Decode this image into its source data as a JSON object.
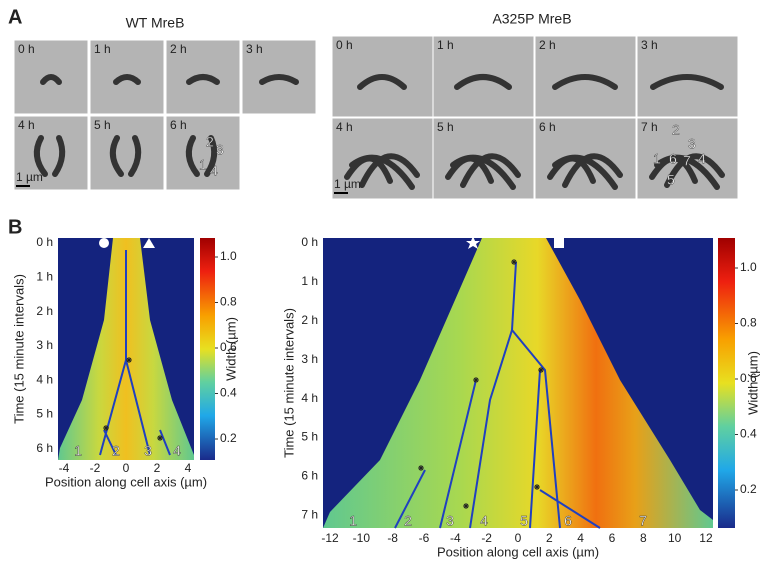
{
  "panel_a": {
    "label": "A",
    "wt": {
      "title": "WT MreB",
      "frames": [
        "0 h",
        "1 h",
        "2 h",
        "3 h",
        "4 h",
        "5 h",
        "6 h"
      ],
      "scale_bar": "1 µm",
      "cell_numbers": [
        "2",
        "3",
        "1",
        "4"
      ]
    },
    "a325p": {
      "title": "A325P MreB",
      "frames": [
        "0 h",
        "1 h",
        "2 h",
        "3 h",
        "4 h",
        "5 h",
        "6 h",
        "7 h"
      ],
      "scale_bar": "1 µm",
      "cell_numbers": [
        "2",
        "3",
        "1",
        "6",
        "7",
        "4",
        "5"
      ]
    }
  },
  "panel_b": {
    "label": "B",
    "left": {
      "y_label": "Time (15 minute intervals)",
      "x_label": "Position along cell axis (µm)",
      "yticks": [
        "0 h",
        "1 h",
        "2 h",
        "3 h",
        "4 h",
        "5 h",
        "6 h"
      ],
      "xticks": [
        "-4",
        "-2",
        "0",
        "2",
        "4"
      ],
      "colorbar_label": "Width (µm)",
      "colorbar_ticks": [
        "1.0",
        "0.8",
        "0.6",
        "0.4",
        "0.2"
      ],
      "cell_numbers": [
        "1",
        "2",
        "3",
        "4"
      ]
    },
    "right": {
      "y_label": "Time (15 minute intervals)",
      "x_label": "Position along cell axis (µm)",
      "yticks": [
        "0 h",
        "1 h",
        "2 h",
        "3 h",
        "4 h",
        "5 h",
        "6 h",
        "7 h"
      ],
      "xticks": [
        "-12",
        "-10",
        "-8",
        "-6",
        "-4",
        "-2",
        "0",
        "2",
        "4",
        "6",
        "8",
        "10",
        "12"
      ],
      "colorbar_label": "Width (µm)",
      "colorbar_ticks": [
        "1.0",
        "0.8",
        "0.6",
        "0.4",
        "0.2"
      ],
      "cell_numbers": [
        "1",
        "2",
        "3",
        "4",
        "5",
        "6",
        "7"
      ]
    }
  }
}
